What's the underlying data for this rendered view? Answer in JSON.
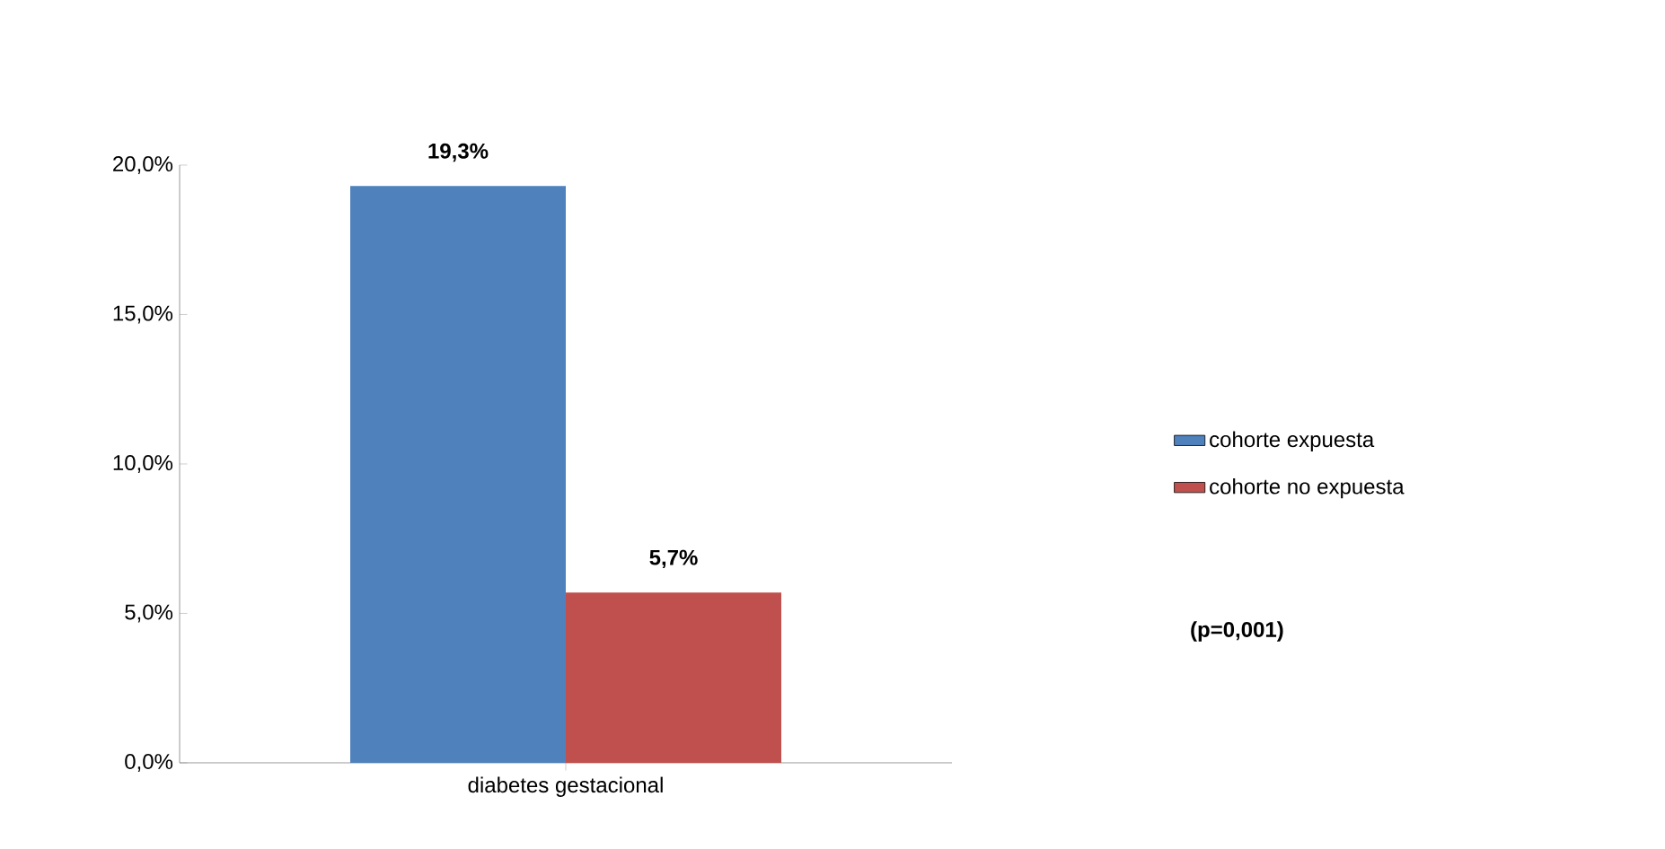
{
  "chart_data": {
    "type": "bar",
    "categories": [
      "diabetes gestacional"
    ],
    "series": [
      {
        "name": "cohorte expuesta",
        "color": "#4f81bd",
        "values": [
          19.3
        ],
        "value_labels": [
          "19,3%"
        ]
      },
      {
        "name": "cohorte no expuesta",
        "color": "#c0504d",
        "values": [
          5.7
        ],
        "value_labels": [
          "5,7%"
        ]
      }
    ],
    "ylim": [
      0,
      20
    ],
    "yticks": [
      {
        "value": 0,
        "label": "0,0%"
      },
      {
        "value": 5,
        "label": "5,0%"
      },
      {
        "value": 10,
        "label": "10,0%"
      },
      {
        "value": 15,
        "label": "15,0%"
      },
      {
        "value": 20,
        "label": "20,0%"
      }
    ],
    "grid": false,
    "legend": "right",
    "annotations": [
      "(p=0,001)"
    ]
  }
}
